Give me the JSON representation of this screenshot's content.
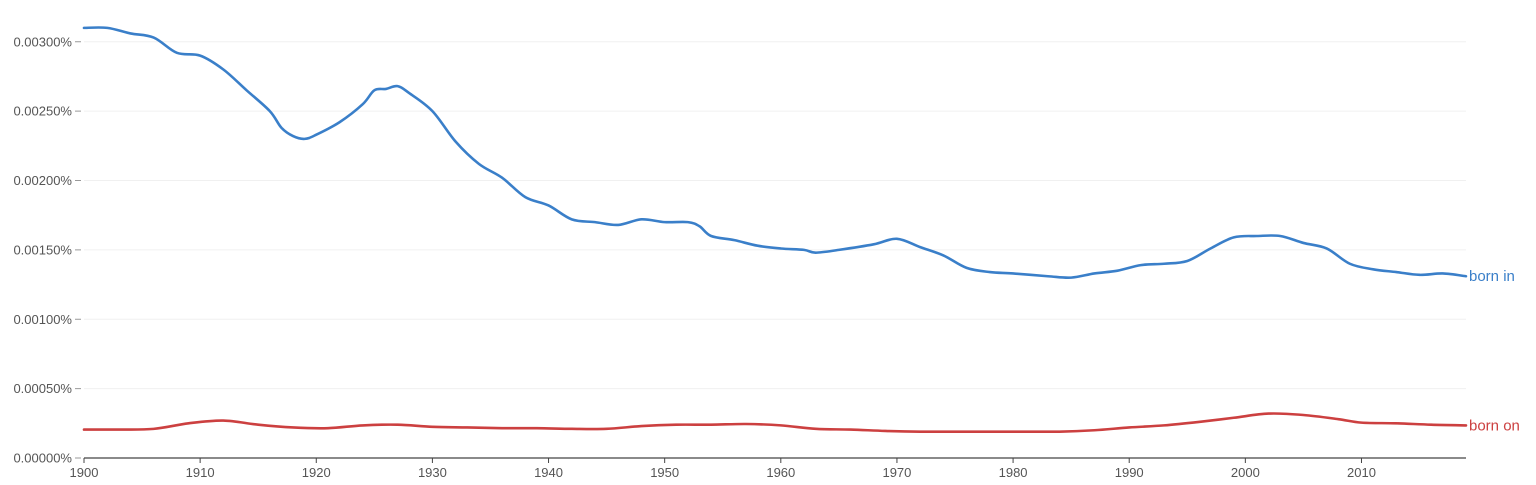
{
  "chart_data": {
    "type": "line",
    "title": "",
    "xlabel": "",
    "ylabel": "",
    "xlim": [
      1900,
      2019
    ],
    "ylim": [
      0,
      0.0032
    ],
    "grid": true,
    "legend": "inline-right",
    "x_ticks": [
      {
        "value": 1900,
        "label": "1900"
      },
      {
        "value": 1910,
        "label": "1910"
      },
      {
        "value": 1920,
        "label": "1920"
      },
      {
        "value": 1930,
        "label": "1930"
      },
      {
        "value": 1940,
        "label": "1940"
      },
      {
        "value": 1950,
        "label": "1950"
      },
      {
        "value": 1960,
        "label": "1960"
      },
      {
        "value": 1970,
        "label": "1970"
      },
      {
        "value": 1980,
        "label": "1980"
      },
      {
        "value": 1990,
        "label": "1990"
      },
      {
        "value": 2000,
        "label": "2000"
      },
      {
        "value": 2010,
        "label": "2010"
      }
    ],
    "y_ticks": [
      {
        "value": 0,
        "label": "0.00000%"
      },
      {
        "value": 0.0005,
        "label": "0.00050%"
      },
      {
        "value": 0.001,
        "label": "0.00100%"
      },
      {
        "value": 0.0015,
        "label": "0.00150%"
      },
      {
        "value": 0.002,
        "label": "0.00200%"
      },
      {
        "value": 0.0025,
        "label": "0.00250%"
      },
      {
        "value": 0.003,
        "label": "0.00300%"
      }
    ],
    "series": [
      {
        "name": "born in",
        "color": "#3a7fc9",
        "points": [
          [
            1900,
            0.0031
          ],
          [
            1902,
            0.0031
          ],
          [
            1904,
            0.00306
          ],
          [
            1906,
            0.00303
          ],
          [
            1908,
            0.00292
          ],
          [
            1910,
            0.0029
          ],
          [
            1912,
            0.0028
          ],
          [
            1914,
            0.00265
          ],
          [
            1916,
            0.0025
          ],
          [
            1917,
            0.00238
          ],
          [
            1918,
            0.00232
          ],
          [
            1919,
            0.0023
          ],
          [
            1920,
            0.00233
          ],
          [
            1922,
            0.00242
          ],
          [
            1924,
            0.00255
          ],
          [
            1925,
            0.00265
          ],
          [
            1926,
            0.00266
          ],
          [
            1927,
            0.00268
          ],
          [
            1928,
            0.00263
          ],
          [
            1930,
            0.0025
          ],
          [
            1932,
            0.00228
          ],
          [
            1934,
            0.00212
          ],
          [
            1936,
            0.00202
          ],
          [
            1938,
            0.00188
          ],
          [
            1940,
            0.00182
          ],
          [
            1942,
            0.00172
          ],
          [
            1944,
            0.0017
          ],
          [
            1946,
            0.00168
          ],
          [
            1948,
            0.00172
          ],
          [
            1950,
            0.0017
          ],
          [
            1952,
            0.0017
          ],
          [
            1953,
            0.00167
          ],
          [
            1954,
            0.0016
          ],
          [
            1956,
            0.00157
          ],
          [
            1958,
            0.00153
          ],
          [
            1960,
            0.00151
          ],
          [
            1962,
            0.0015
          ],
          [
            1963,
            0.00148
          ],
          [
            1965,
            0.0015
          ],
          [
            1968,
            0.00154
          ],
          [
            1970,
            0.00158
          ],
          [
            1972,
            0.00152
          ],
          [
            1974,
            0.00146
          ],
          [
            1976,
            0.00137
          ],
          [
            1978,
            0.00134
          ],
          [
            1980,
            0.00133
          ],
          [
            1983,
            0.00131
          ],
          [
            1985,
            0.0013
          ],
          [
            1987,
            0.00133
          ],
          [
            1989,
            0.00135
          ],
          [
            1991,
            0.00139
          ],
          [
            1993,
            0.0014
          ],
          [
            1995,
            0.00142
          ],
          [
            1997,
            0.00151
          ],
          [
            1999,
            0.00159
          ],
          [
            2001,
            0.0016
          ],
          [
            2003,
            0.0016
          ],
          [
            2005,
            0.00155
          ],
          [
            2007,
            0.00151
          ],
          [
            2009,
            0.0014
          ],
          [
            2011,
            0.00136
          ],
          [
            2013,
            0.00134
          ],
          [
            2015,
            0.00132
          ],
          [
            2017,
            0.00133
          ],
          [
            2019,
            0.00131
          ]
        ]
      },
      {
        "name": "born on",
        "color": "#cc4040",
        "points": [
          [
            1900,
            0.000205
          ],
          [
            1903,
            0.000205
          ],
          [
            1906,
            0.00021
          ],
          [
            1909,
            0.00025
          ],
          [
            1912,
            0.00027
          ],
          [
            1915,
            0.00024
          ],
          [
            1918,
            0.00022
          ],
          [
            1921,
            0.000215
          ],
          [
            1924,
            0.000235
          ],
          [
            1927,
            0.00024
          ],
          [
            1930,
            0.000225
          ],
          [
            1933,
            0.00022
          ],
          [
            1936,
            0.000215
          ],
          [
            1939,
            0.000215
          ],
          [
            1942,
            0.00021
          ],
          [
            1945,
            0.00021
          ],
          [
            1948,
            0.00023
          ],
          [
            1951,
            0.00024
          ],
          [
            1954,
            0.00024
          ],
          [
            1957,
            0.000245
          ],
          [
            1960,
            0.000235
          ],
          [
            1963,
            0.00021
          ],
          [
            1966,
            0.000205
          ],
          [
            1969,
            0.000195
          ],
          [
            1972,
            0.00019
          ],
          [
            1975,
            0.00019
          ],
          [
            1978,
            0.00019
          ],
          [
            1981,
            0.00019
          ],
          [
            1984,
            0.00019
          ],
          [
            1987,
            0.0002
          ],
          [
            1990,
            0.00022
          ],
          [
            1993,
            0.000235
          ],
          [
            1996,
            0.00026
          ],
          [
            1999,
            0.00029
          ],
          [
            2002,
            0.00032
          ],
          [
            2005,
            0.00031
          ],
          [
            2008,
            0.00028
          ],
          [
            2010,
            0.000255
          ],
          [
            2013,
            0.00025
          ],
          [
            2016,
            0.00024
          ],
          [
            2019,
            0.000235
          ]
        ]
      }
    ]
  }
}
